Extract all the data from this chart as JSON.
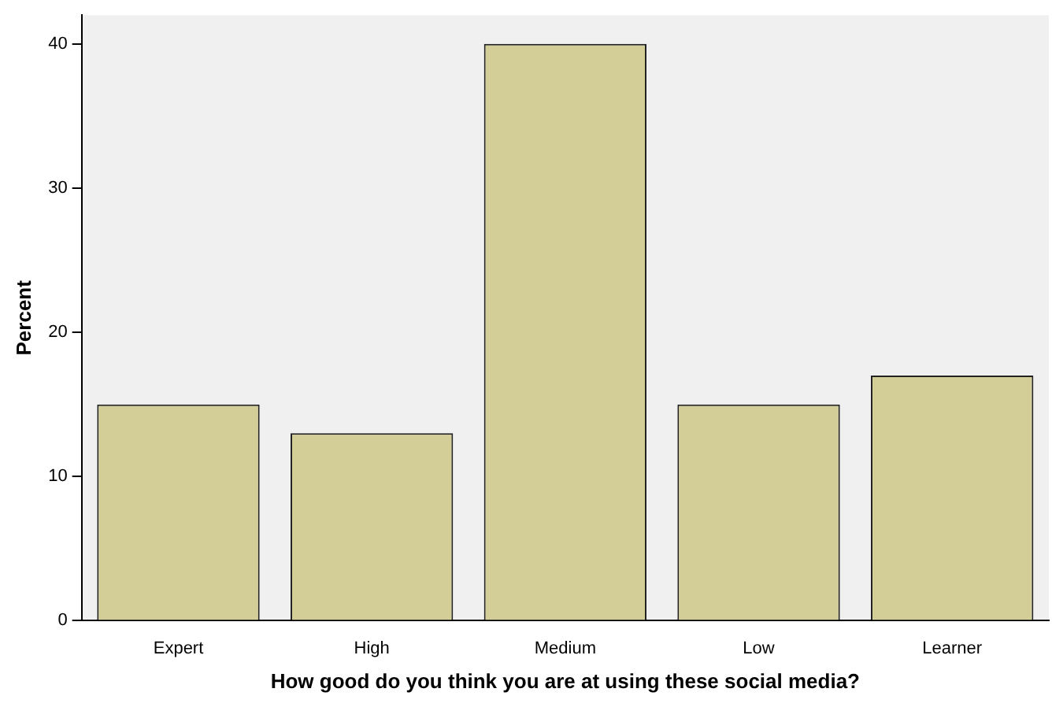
{
  "chart_data": {
    "type": "bar",
    "xlabel": "How good do you think you are at using these social media?",
    "ylabel": "Percent",
    "categories": [
      "Expert",
      "High",
      "Medium",
      "Low",
      "Learner"
    ],
    "values": [
      15,
      13,
      40,
      15,
      17
    ],
    "color": "#d3ce97",
    "ylim": [
      0,
      42
    ],
    "yticks": [
      0,
      10,
      20,
      30,
      40
    ],
    "grid": false,
    "legend": false
  }
}
